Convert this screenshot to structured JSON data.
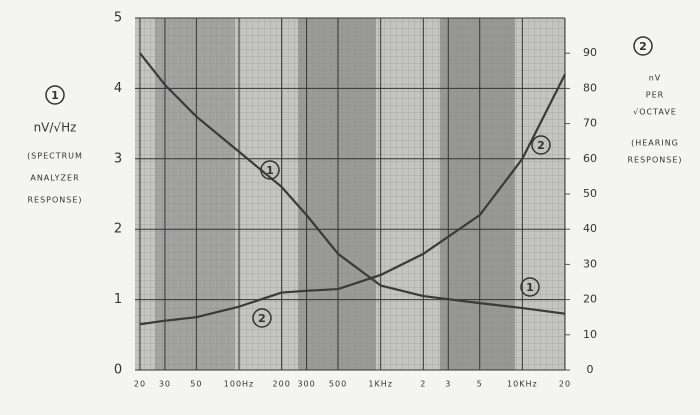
{
  "chart_data": {
    "type": "line",
    "x_scale": "log",
    "xlim": [
      20,
      20000
    ],
    "xticks": [
      20,
      30,
      50,
      {
        "value": 100,
        "label": "100Hz"
      },
      200,
      300,
      500,
      {
        "value": 1000,
        "label": "1KHz"
      },
      {
        "value": 2000,
        "label": "2"
      },
      {
        "value": 3000,
        "label": "3"
      },
      {
        "value": 5000,
        "label": "5"
      },
      {
        "value": 10000,
        "label": "10KHz"
      },
      {
        "value": 20000,
        "label": "20"
      }
    ],
    "ylim": [
      0,
      5
    ],
    "yticks": [
      0,
      1,
      2,
      3,
      4,
      5
    ],
    "y2lim": [
      0,
      100
    ],
    "y2ticks": [
      0,
      10,
      20,
      30,
      40,
      50,
      60,
      70,
      80,
      90
    ],
    "ylabel_lines": [
      "nV/√Hz",
      "(SPECTRUM",
      "ANALYZER",
      "RESPONSE)"
    ],
    "y2label_lines": [
      "nV",
      "PER",
      "√OCTAVE",
      "(HEARING",
      "RESPONSE)"
    ],
    "grid": true,
    "x": [
      20,
      30,
      50,
      100,
      200,
      300,
      500,
      1000,
      2000,
      5000,
      10000,
      20000
    ],
    "series": [
      {
        "name": "1",
        "color": "#3a3a3a",
        "values": [
          4.5,
          4.05,
          3.6,
          3.1,
          2.6,
          2.2,
          1.65,
          1.2,
          1.05,
          0.95,
          0.88,
          0.8
        ]
      },
      {
        "name": "2",
        "color": "#3a3a3a",
        "axis": "y2",
        "values": [
          13,
          14,
          15,
          18,
          22,
          22.5,
          23,
          27,
          33,
          44,
          60,
          84
        ]
      }
    ]
  }
}
